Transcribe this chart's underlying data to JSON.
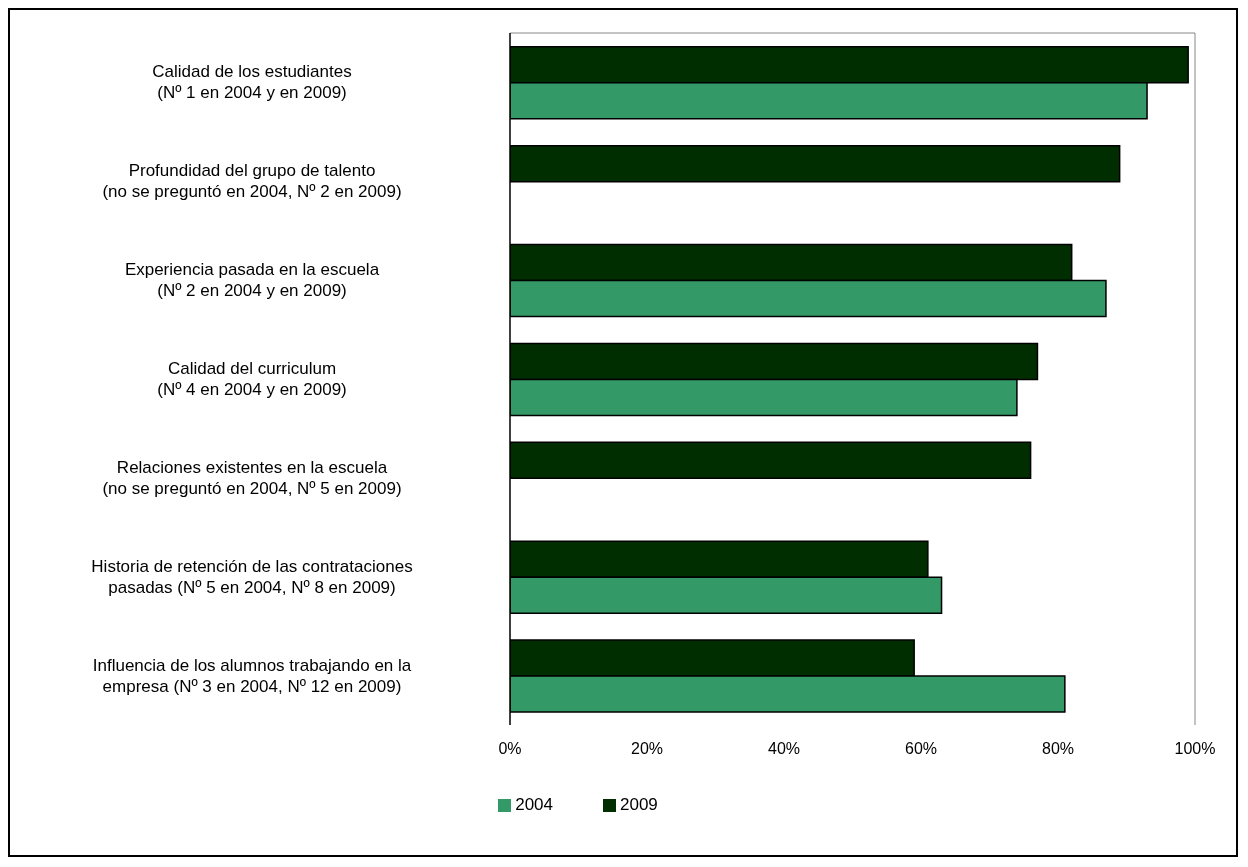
{
  "chart_data": {
    "type": "bar",
    "orientation": "horizontal",
    "categories": [
      "Calidad de los estudiantes\n(Nº 1 en 2004 y en 2009)",
      "Profundidad del grupo de talento\n(no se preguntó en 2004, Nº 2 en 2009)",
      "Experiencia pasada en la escuela\n(Nº 2 en 2004 y en 2009)",
      "Calidad del curriculum\n(Nº 4 en 2004 y en 2009)",
      "Relaciones existentes en la escuela\n(no se preguntó en 2004, Nº 5 en 2009)",
      "Historia de retención de las contrataciones\npasadas (Nº 5 en 2004, Nº 8 en 2009)",
      "Influencia de los alumnos trabajando en la\nempresa (Nº 3 en 2004, Nº 12 en 2009)"
    ],
    "series": [
      {
        "name": "2009",
        "color": "#002e00",
        "values": [
          99,
          89,
          82,
          77,
          76,
          61,
          59
        ]
      },
      {
        "name": "2004",
        "color": "#339966",
        "values": [
          93,
          null,
          87,
          74,
          null,
          63,
          81
        ]
      }
    ],
    "xlim": [
      0,
      100
    ],
    "xticks": [
      {
        "value": 0,
        "label": "0%"
      },
      {
        "value": 20,
        "label": "20%"
      },
      {
        "value": 40,
        "label": "40%"
      },
      {
        "value": 60,
        "label": "60%"
      },
      {
        "value": 80,
        "label": "80%"
      },
      {
        "value": 100,
        "label": "100%"
      }
    ],
    "grid": false,
    "legend": "bottom"
  }
}
